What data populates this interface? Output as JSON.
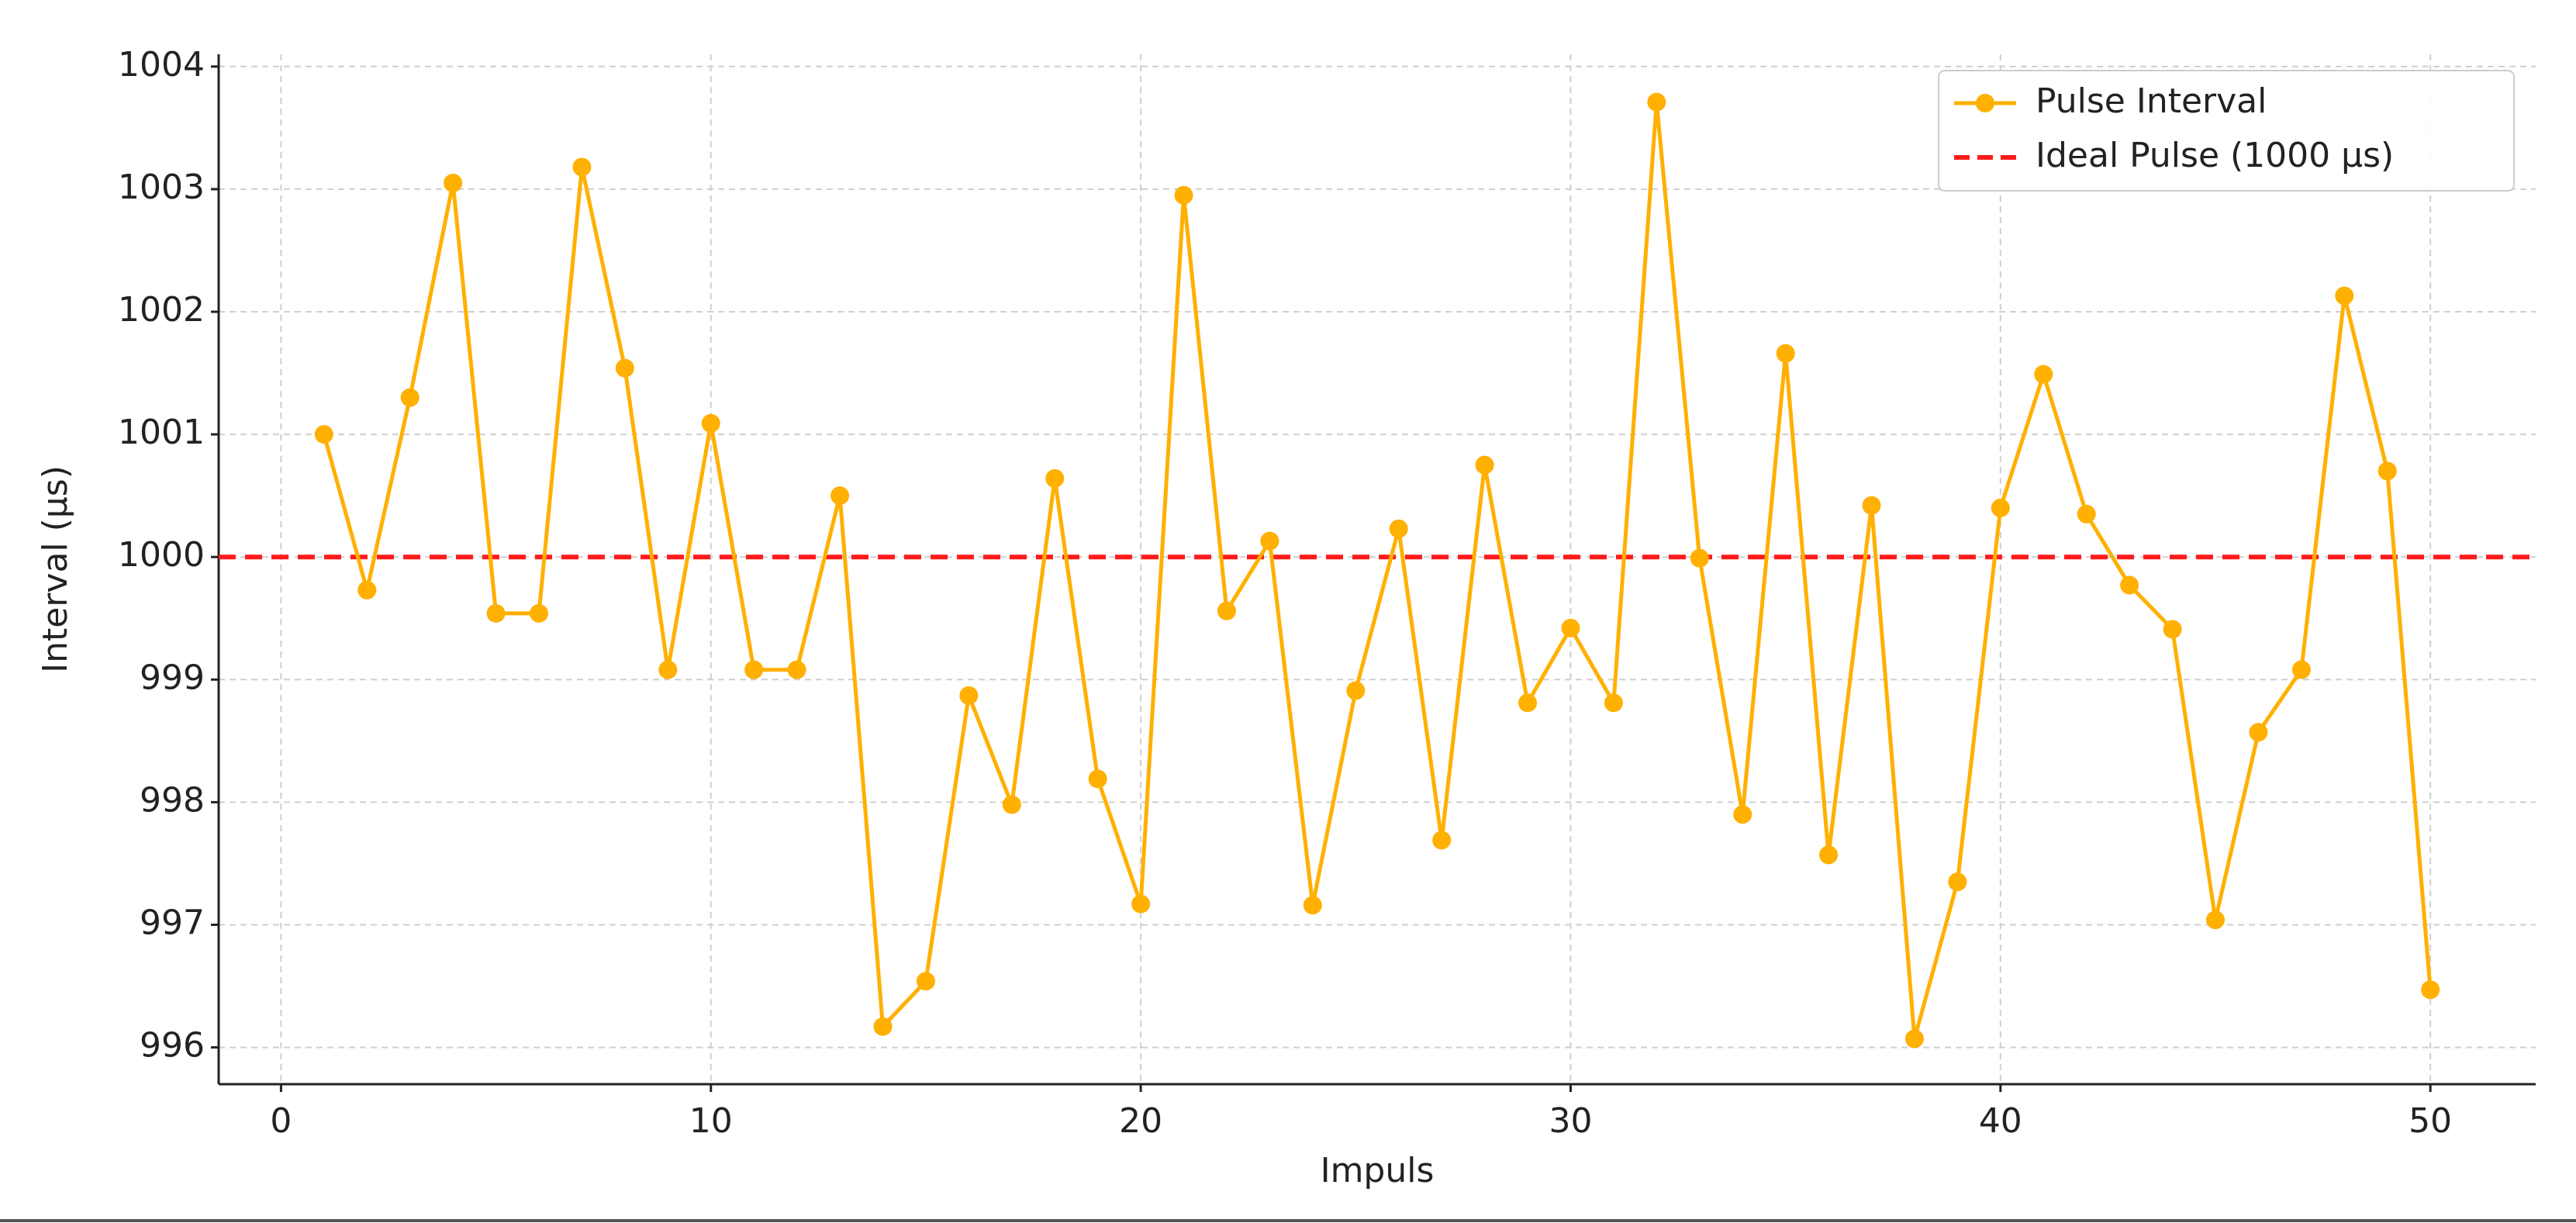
{
  "chart_data": {
    "type": "line",
    "xlabel": "Impuls",
    "ylabel": "Interval (µs)",
    "x": [
      1,
      2,
      3,
      4,
      5,
      6,
      7,
      8,
      9,
      10,
      11,
      12,
      13,
      14,
      15,
      16,
      17,
      18,
      19,
      20,
      21,
      22,
      23,
      24,
      25,
      26,
      27,
      28,
      29,
      30,
      31,
      32,
      33,
      34,
      35,
      36,
      37,
      38,
      39,
      40,
      41,
      42,
      43,
      44,
      45,
      46,
      47,
      48,
      49,
      50
    ],
    "series": [
      {
        "name": "Pulse Interval",
        "color": "#ffb000",
        "values": [
          1001.0,
          999.73,
          1001.3,
          1003.05,
          999.54,
          999.54,
          1003.18,
          1001.54,
          999.08,
          1001.09,
          999.08,
          999.08,
          1000.5,
          996.17,
          996.54,
          998.87,
          997.98,
          1000.64,
          998.19,
          997.17,
          1002.95,
          999.56,
          1000.13,
          997.16,
          998.91,
          1000.23,
          997.69,
          1000.75,
          998.81,
          999.42,
          998.81,
          1003.71,
          999.99,
          997.9,
          1001.66,
          997.57,
          1000.42,
          996.07,
          997.35,
          1000.4,
          1001.49,
          1000.35,
          999.77,
          999.41,
          997.04,
          998.57,
          999.08,
          1002.13,
          1000.7,
          996.47
        ]
      }
    ],
    "reference_line": {
      "name": "Ideal Pulse (1000 µs)",
      "value": 1000,
      "color": "#ff1a1a"
    },
    "xlim": [
      -1.45,
      52.45
    ],
    "ylim": [
      995.7,
      1004.1
    ],
    "xticks": [
      0,
      10,
      20,
      30,
      40,
      50
    ],
    "yticks": [
      996,
      997,
      998,
      999,
      1000,
      1001,
      1002,
      1003,
      1004
    ],
    "grid": true,
    "legend": "upper right"
  }
}
